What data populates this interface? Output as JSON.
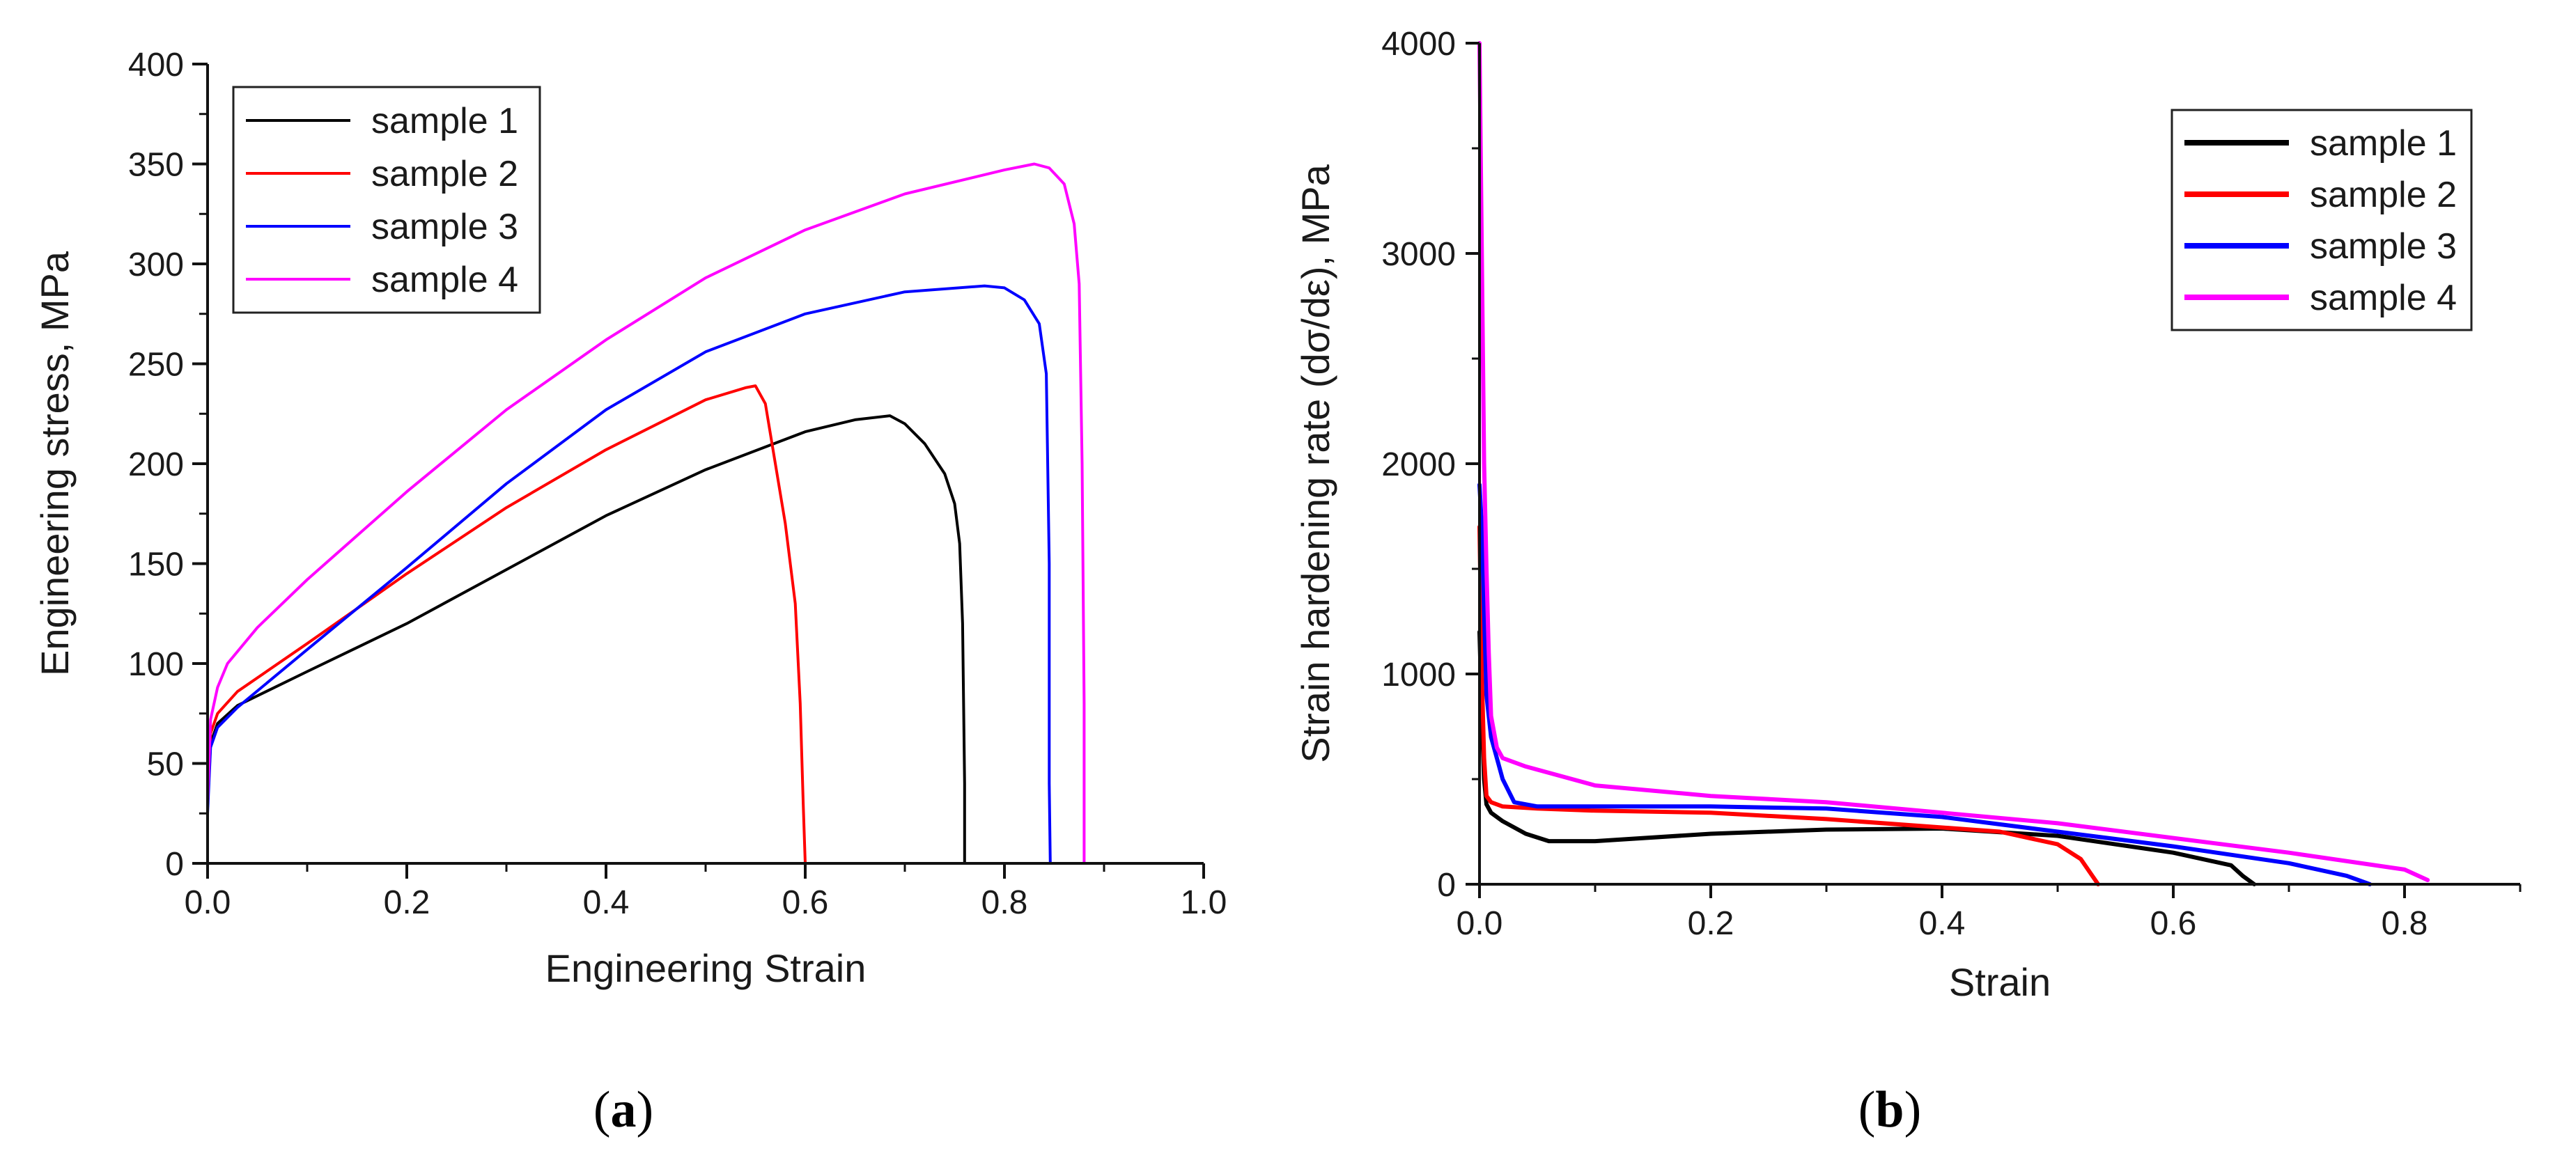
{
  "figure": {
    "panels": [
      {
        "label_open": "(",
        "label_letter": "a",
        "label_close": ")"
      },
      {
        "label_open": "(",
        "label_letter": "b",
        "label_close": ")"
      }
    ]
  },
  "chart_data": [
    {
      "id": "a",
      "type": "line",
      "title": "",
      "xlabel": "Engineering Strain",
      "ylabel": "Engineering stress, MPa",
      "xlim": [
        0.0,
        1.0
      ],
      "ylim": [
        0,
        400
      ],
      "xticks": [
        0.0,
        0.2,
        0.4,
        0.6,
        0.8,
        1.0
      ],
      "xtick_labels": [
        "0.0",
        "0.2",
        "0.4",
        "0.6",
        "0.8",
        "1.0"
      ],
      "yticks": [
        0,
        50,
        100,
        150,
        200,
        250,
        300,
        350,
        400
      ],
      "ytick_labels": [
        "0",
        "50",
        "100",
        "150",
        "200",
        "250",
        "300",
        "350",
        "400"
      ],
      "grid": false,
      "legend_position": "top-left",
      "series": [
        {
          "name": "sample 1",
          "color": "#000000",
          "x": [
            0,
            0.003,
            0.01,
            0.03,
            0.1,
            0.2,
            0.3,
            0.4,
            0.5,
            0.6,
            0.65,
            0.685,
            0.7,
            0.72,
            0.74,
            0.75,
            0.755,
            0.758,
            0.76,
            0.76
          ],
          "y": [
            28,
            60,
            70,
            79,
            96,
            120,
            147,
            174,
            197,
            216,
            222,
            224,
            220,
            210,
            195,
            180,
            160,
            120,
            40,
            0
          ]
        },
        {
          "name": "sample 2",
          "color": "#ff0000",
          "x": [
            0,
            0.003,
            0.01,
            0.03,
            0.1,
            0.2,
            0.3,
            0.4,
            0.5,
            0.54,
            0.55,
            0.56,
            0.57,
            0.58,
            0.59,
            0.595,
            0.598,
            0.6
          ],
          "y": [
            30,
            65,
            75,
            86,
            110,
            145,
            178,
            207,
            232,
            238,
            239,
            230,
            200,
            170,
            130,
            80,
            30,
            0
          ]
        },
        {
          "name": "sample 3",
          "color": "#0000ff",
          "x": [
            0,
            0.003,
            0.01,
            0.03,
            0.1,
            0.2,
            0.3,
            0.4,
            0.5,
            0.6,
            0.7,
            0.78,
            0.8,
            0.82,
            0.835,
            0.842,
            0.845,
            0.845,
            0.846
          ],
          "y": [
            25,
            58,
            68,
            78,
            107,
            148,
            190,
            227,
            256,
            275,
            286,
            289,
            288,
            282,
            270,
            245,
            150,
            40,
            0
          ]
        },
        {
          "name": "sample 4",
          "color": "#ff00ff",
          "x": [
            0,
            0.003,
            0.01,
            0.02,
            0.05,
            0.1,
            0.2,
            0.3,
            0.4,
            0.5,
            0.6,
            0.7,
            0.8,
            0.83,
            0.845,
            0.86,
            0.87,
            0.875,
            0.878,
            0.88,
            0.88,
            0.9
          ],
          "y": [
            30,
            72,
            88,
            100,
            118,
            142,
            186,
            227,
            262,
            293,
            317,
            335,
            347,
            350,
            348,
            340,
            320,
            290,
            200,
            80,
            0,
            0
          ]
        }
      ]
    },
    {
      "id": "b",
      "type": "line",
      "title": "",
      "xlabel": "Strain",
      "ylabel": "Strain hardening rate (dσ/dε), MPa",
      "xlim": [
        0.0,
        0.9
      ],
      "ylim": [
        0,
        4000
      ],
      "xticks": [
        0.0,
        0.2,
        0.4,
        0.6,
        0.8
      ],
      "xtick_labels": [
        "0.0",
        "0.2",
        "0.4",
        "0.6",
        "0.8"
      ],
      "yticks": [
        0,
        1000,
        2000,
        3000,
        4000
      ],
      "ytick_labels": [
        "0",
        "1000",
        "2000",
        "3000",
        "4000"
      ],
      "grid": false,
      "legend_position": "top-right",
      "series": [
        {
          "name": "sample 1",
          "color": "#000000",
          "x": [
            0,
            0.002,
            0.004,
            0.006,
            0.01,
            0.02,
            0.04,
            0.06,
            0.1,
            0.2,
            0.3,
            0.4,
            0.5,
            0.6,
            0.65,
            0.66,
            0.67
          ],
          "y": [
            1200,
            800,
            500,
            380,
            340,
            300,
            240,
            205,
            205,
            240,
            260,
            265,
            230,
            150,
            90,
            40,
            0
          ]
        },
        {
          "name": "sample 2",
          "color": "#ff0000",
          "x": [
            0,
            0.002,
            0.004,
            0.006,
            0.01,
            0.02,
            0.05,
            0.1,
            0.2,
            0.3,
            0.4,
            0.45,
            0.5,
            0.52,
            0.53,
            0.535
          ],
          "y": [
            1700,
            1000,
            600,
            420,
            390,
            370,
            360,
            350,
            340,
            310,
            270,
            250,
            190,
            120,
            40,
            0
          ]
        },
        {
          "name": "sample 3",
          "color": "#0000ff",
          "x": [
            0,
            0.002,
            0.004,
            0.006,
            0.01,
            0.02,
            0.03,
            0.05,
            0.1,
            0.2,
            0.3,
            0.4,
            0.5,
            0.6,
            0.7,
            0.75,
            0.77
          ],
          "y": [
            1900,
            1700,
            1300,
            900,
            700,
            500,
            390,
            370,
            370,
            370,
            360,
            320,
            250,
            180,
            100,
            40,
            0
          ]
        },
        {
          "name": "sample 4",
          "color": "#ff00ff",
          "x": [
            0,
            0.002,
            0.004,
            0.006,
            0.008,
            0.01,
            0.015,
            0.02,
            0.04,
            0.1,
            0.2,
            0.3,
            0.4,
            0.5,
            0.6,
            0.7,
            0.8,
            0.82
          ],
          "y": [
            4000,
            3000,
            2000,
            1500,
            1100,
            800,
            650,
            600,
            560,
            470,
            420,
            390,
            340,
            290,
            220,
            150,
            70,
            20
          ]
        }
      ]
    }
  ]
}
